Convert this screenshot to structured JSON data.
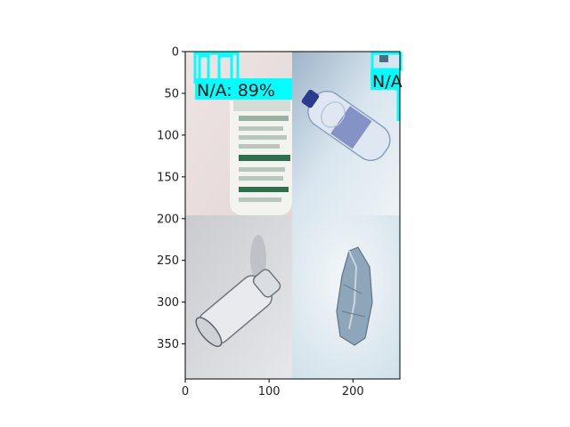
{
  "figure": {
    "background": "#ffffff",
    "axes": {
      "x_ticks": [
        {
          "value": 0,
          "label": "0"
        },
        {
          "value": 100,
          "label": "100"
        },
        {
          "value": 200,
          "label": "200"
        }
      ],
      "y_ticks": [
        {
          "value": 0,
          "label": "0"
        },
        {
          "value": 50,
          "label": "50"
        },
        {
          "value": 100,
          "label": "100"
        },
        {
          "value": 150,
          "label": "150"
        },
        {
          "value": 200,
          "label": "200"
        },
        {
          "value": 250,
          "label": "250"
        },
        {
          "value": 300,
          "label": "300"
        },
        {
          "value": 350,
          "label": "350"
        }
      ],
      "xlim": [
        0,
        256
      ],
      "ylim": [
        392,
        0
      ]
    },
    "image_tiles": [
      {
        "name": "tile-top-left",
        "subject": "bottle label close-up"
      },
      {
        "name": "tile-top-right",
        "subject": "water bottle lying diagonal"
      },
      {
        "name": "tile-bottom-left",
        "subject": "clear glass bottle on side"
      },
      {
        "name": "tile-bottom-right",
        "subject": "crushed plastic bottle"
      }
    ],
    "detections": [
      {
        "label": "N/A: 89%",
        "box_color": "#00ffff"
      },
      {
        "label": "N/A",
        "box_color": "#00ffff"
      }
    ]
  }
}
